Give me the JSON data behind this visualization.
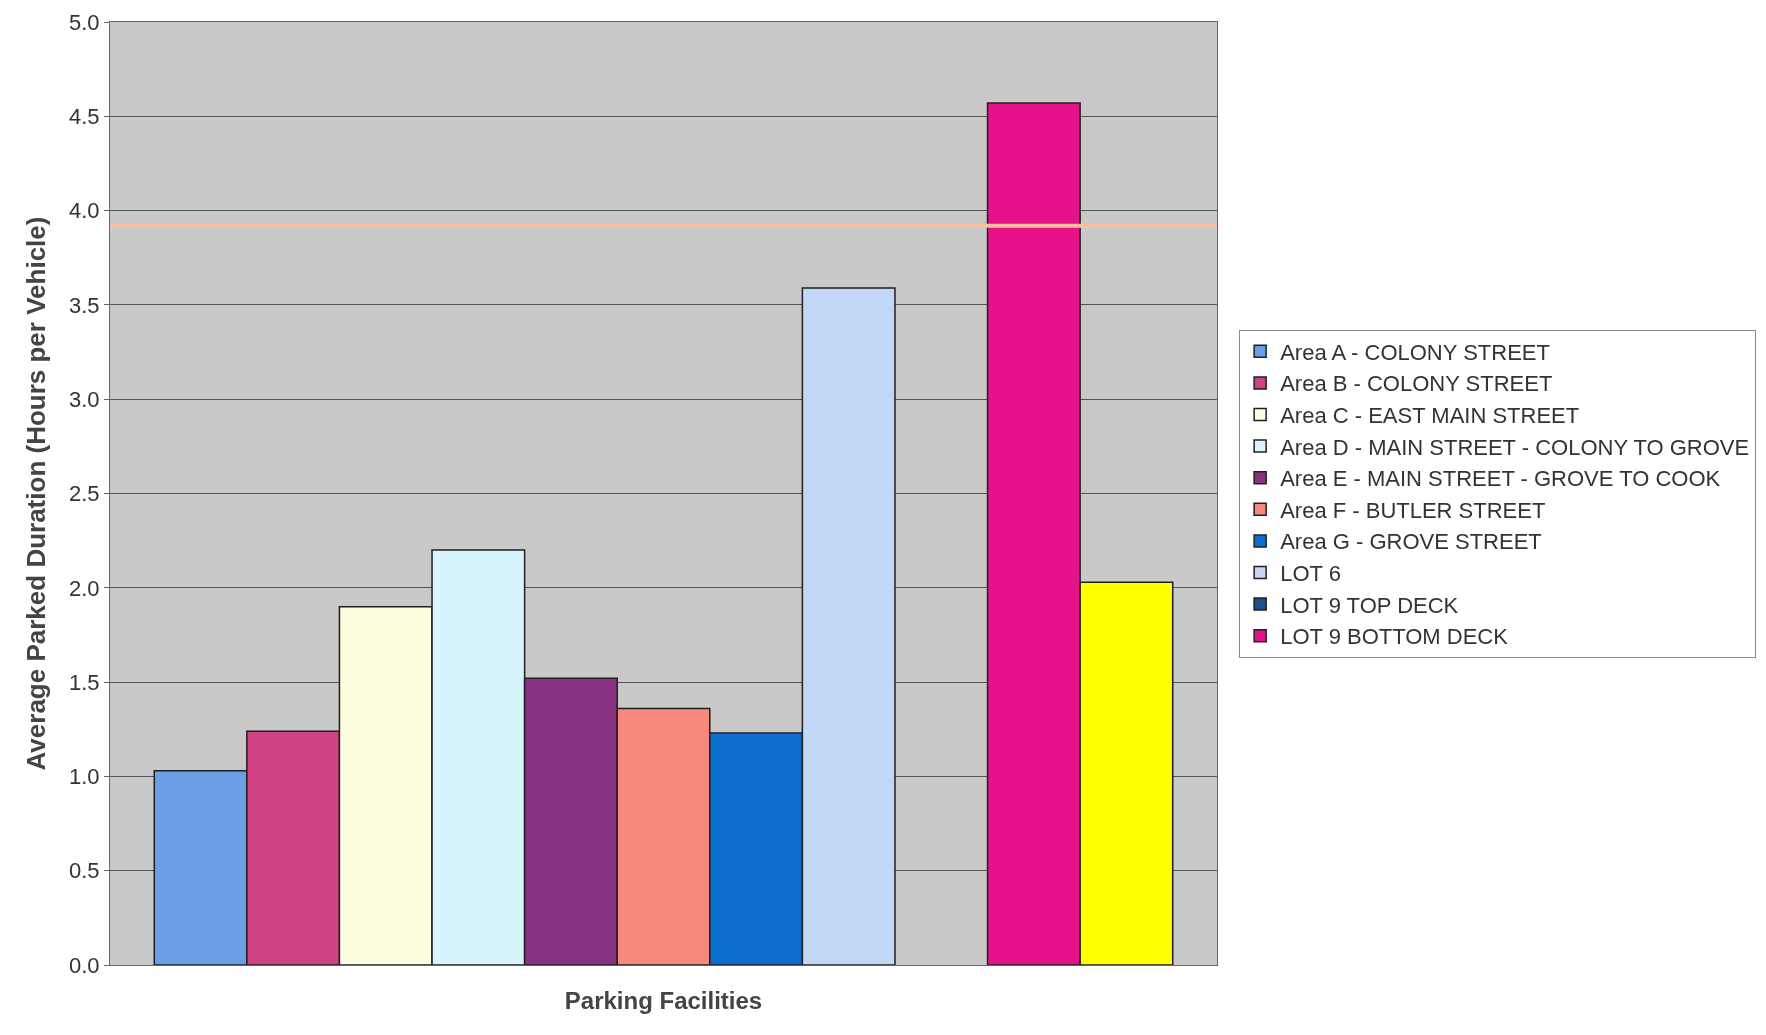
{
  "chart_data": {
    "type": "bar",
    "xlabel": "Parking Facilities",
    "ylabel": "Average Parked Duration (Hours per Vehicle)",
    "categories": [
      null
    ],
    "series": [
      {
        "name": "Area A - COLONY STREET",
        "color": "#6a9fe6",
        "values": [
          1.03
        ]
      },
      {
        "name": "Area B - COLONY STREET",
        "color": "#d04383",
        "values": [
          1.24
        ]
      },
      {
        "name": "Area C - EAST MAIN STREET",
        "color": "#fffde0",
        "values": [
          1.9
        ]
      },
      {
        "name": "Area D - MAIN STREET - COLONY TO GROVE",
        "color": "#d8f4fc",
        "values": [
          2.2
        ]
      },
      {
        "name": "Area E - MAIN STREET - GROVE TO COOK",
        "color": "#8a3282",
        "values": [
          1.52
        ]
      },
      {
        "name": "Area F - BUTLER STREET",
        "color": "#f8877e",
        "values": [
          1.36
        ]
      },
      {
        "name": "Area G - GROVE STREET",
        "color": "#0c6ed0",
        "values": [
          1.23
        ]
      },
      {
        "name": "LOT 6",
        "color": "#c2d8f6",
        "values": [
          3.59
        ]
      },
      {
        "name": "LOT 9 TOP DECK",
        "color": "#1c4c92",
        "values": [
          null
        ]
      },
      {
        "name": "LOT 9 BOTTOM DECK",
        "color": "#e6128a",
        "values": [
          4.57
        ]
      },
      {
        "color": "#ffff00",
        "values": [
          2.03
        ]
      }
    ],
    "ylim": [
      0,
      5
    ],
    "yticks": [
      {
        "value": 0,
        "label": "0.0"
      },
      0.5,
      {
        "value": 1,
        "label": "1.0"
      },
      1.5,
      {
        "value": 2,
        "label": "2.0"
      },
      2.5,
      {
        "value": 3,
        "label": "3.0"
      },
      3.5,
      {
        "value": 4,
        "label": "4.0"
      },
      4.5,
      {
        "value": 5,
        "label": "5.0"
      }
    ],
    "ref_lines": [
      {
        "axis": "y",
        "value": 3.92,
        "color": "#f8c0a0"
      }
    ],
    "grid": "y",
    "legend": "right"
  }
}
